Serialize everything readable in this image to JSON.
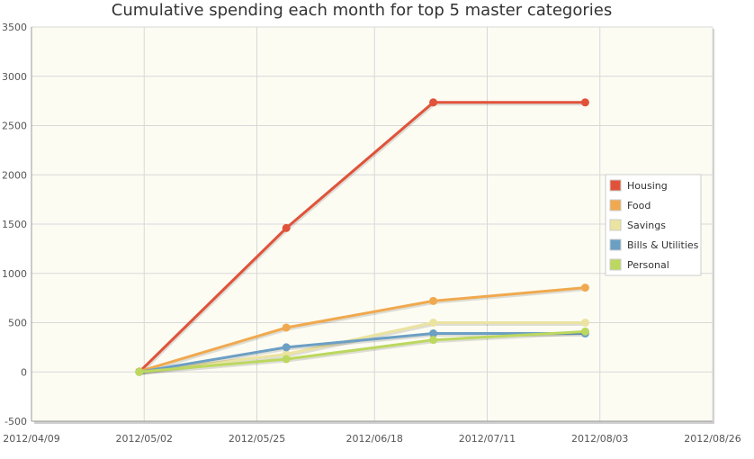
{
  "chart_data": {
    "type": "line",
    "title": "Cumulative spending each month for top 5 master categories",
    "xlabel": "",
    "ylabel": "",
    "ylim": [
      -500,
      3500
    ],
    "yticks": [
      -500,
      0,
      500,
      1000,
      1500,
      2000,
      2500,
      3000,
      3500
    ],
    "xticks": [
      "2012/04/09",
      "2012/05/02",
      "2012/05/25",
      "2012/06/18",
      "2012/07/11",
      "2012/08/03",
      "2012/08/26"
    ],
    "xlim": [
      "2012/04/09",
      "2012/08/26"
    ],
    "x": [
      "2012/05/01",
      "2012/05/31",
      "2012/06/30",
      "2012/07/31"
    ],
    "grid": true,
    "legend_position": "right",
    "series": [
      {
        "name": "Housing",
        "color": "#e0533a",
        "values": [
          0,
          1460,
          2735,
          2735
        ]
      },
      {
        "name": "Food",
        "color": "#f0a94e",
        "values": [
          5,
          450,
          720,
          855
        ]
      },
      {
        "name": "Savings",
        "color": "#ebe3a0",
        "values": [
          0,
          180,
          500,
          500
        ]
      },
      {
        "name": "Bills & Utilities",
        "color": "#6b9fc4",
        "values": [
          0,
          250,
          390,
          390
        ]
      },
      {
        "name": "Personal",
        "color": "#bcd85f",
        "values": [
          0,
          130,
          325,
          410
        ]
      }
    ]
  },
  "colors": {
    "plot_background": "#fdfcf3",
    "grid": "#d8d8d8",
    "axis": "#999999"
  }
}
